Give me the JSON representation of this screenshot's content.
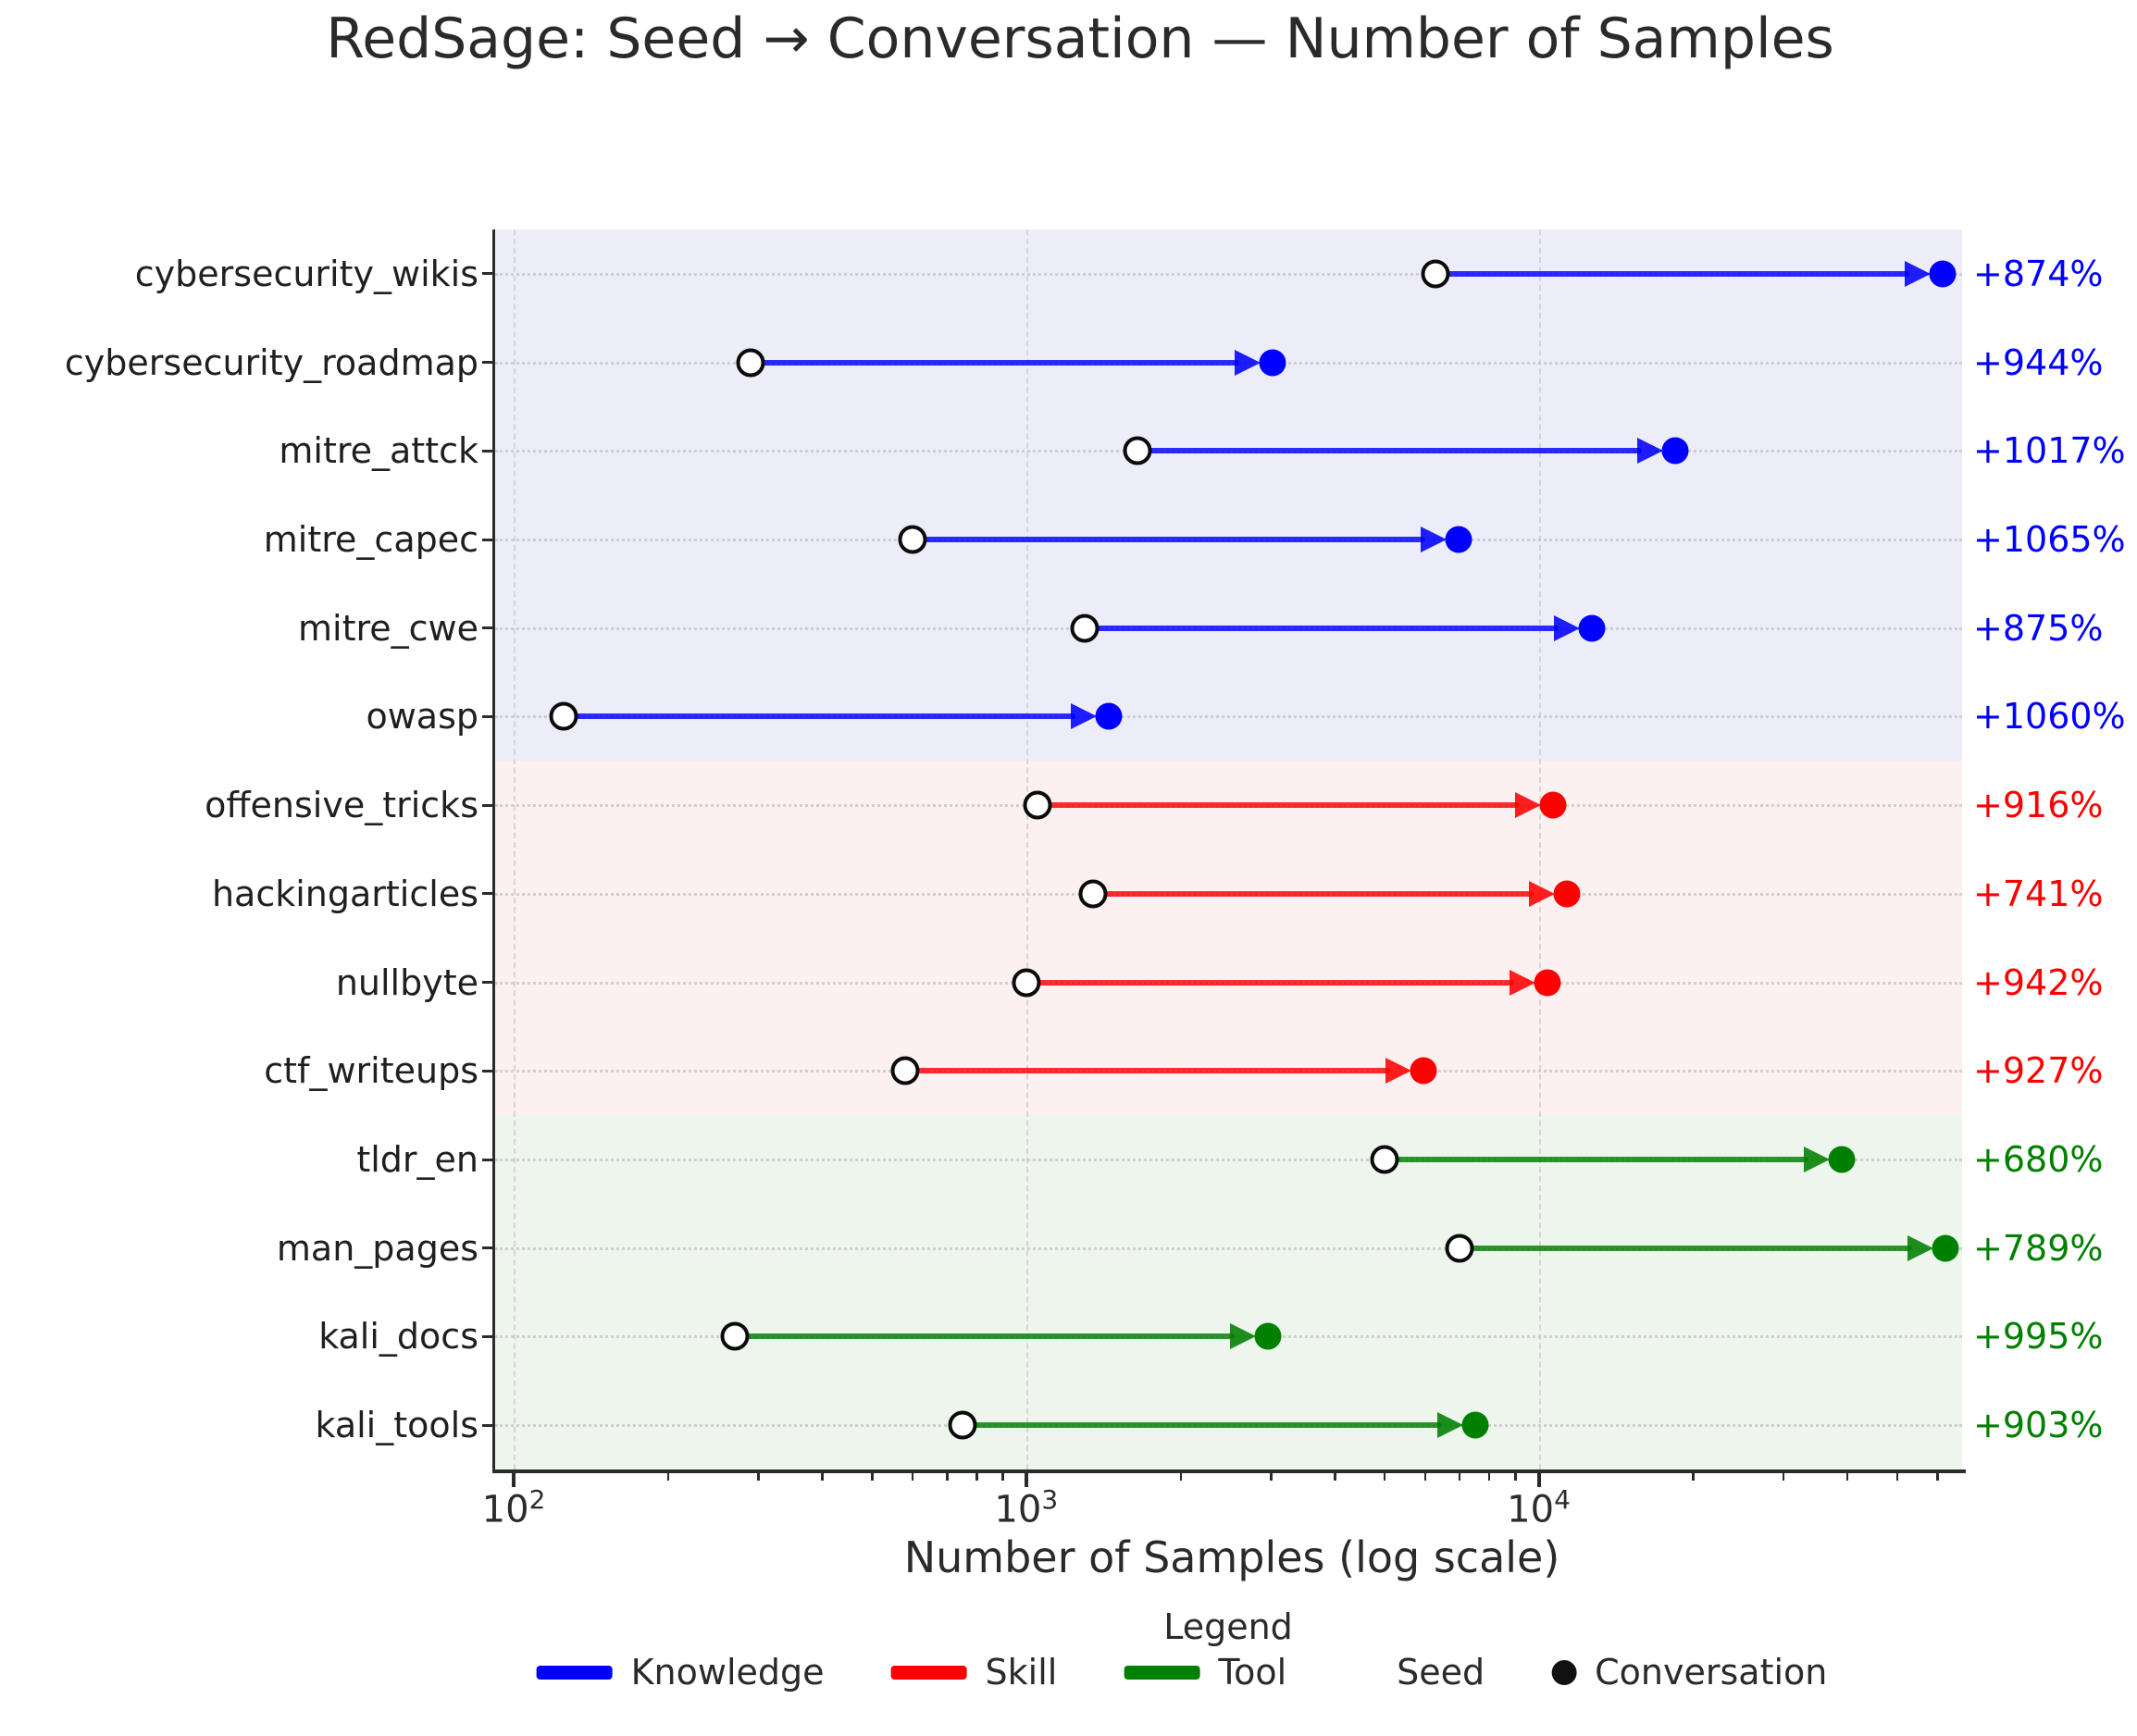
{
  "chart_data": {
    "type": "scatter",
    "variant": "dumbbell-arrow",
    "title": "RedSage: Seed → Conversation — Number of Samples",
    "xlabel": "Number of Samples (log scale)",
    "xscale": "log",
    "xlim": [
      92,
      67000
    ],
    "grid": {
      "vertical": "dashed at decades",
      "horizontal": "dotted per row"
    },
    "xticks": [
      {
        "value": 100,
        "base": "10",
        "exp": "2"
      },
      {
        "value": 1000,
        "base": "10",
        "exp": "3"
      },
      {
        "value": 10000,
        "base": "10",
        "exp": "4"
      }
    ],
    "categories": [
      "cybersecurity_wikis",
      "cybersecurity_roadmap",
      "mitre_attck",
      "mitre_capec",
      "mitre_cwe",
      "owasp",
      "offensive_tricks",
      "hackingarticles",
      "nullbyte",
      "ctf_writeups",
      "tldr_en",
      "man_pages",
      "kali_docs",
      "kali_tools"
    ],
    "groups": [
      "Knowledge",
      "Knowledge",
      "Knowledge",
      "Knowledge",
      "Knowledge",
      "Knowledge",
      "Skill",
      "Skill",
      "Skill",
      "Skill",
      "Tool",
      "Tool",
      "Tool",
      "Tool"
    ],
    "series": [
      {
        "name": "Seed",
        "values": [
          6300,
          290,
          1650,
          600,
          1300,
          125,
          1050,
          1350,
          1000,
          580,
          5000,
          7000,
          270,
          750
        ]
      },
      {
        "name": "Conversation",
        "values": [
          61400,
          3030,
          18430,
          6990,
          12680,
          1450,
          10670,
          11350,
          10420,
          5960,
          39000,
          62230,
          2960,
          7520
        ]
      }
    ],
    "pct_change_labels": [
      "+874%",
      "+944%",
      "+1017%",
      "+1065%",
      "+875%",
      "+1060%",
      "+916%",
      "+741%",
      "+942%",
      "+927%",
      "+680%",
      "+789%",
      "+995%",
      "+903%"
    ],
    "colors": {
      "Knowledge": "#0000ff",
      "Skill": "#ff0000",
      "Tool": "#008000"
    },
    "band_colors": {
      "Knowledge": "#ededf9",
      "Skill": "#fdf0f0",
      "Tool": "#edf5ed"
    },
    "seed_marker": {
      "fill": "#ffffff",
      "edge": "#0b0b0b"
    },
    "legend": {
      "title": "Legend",
      "items": [
        {
          "label": "Knowledge",
          "type": "line",
          "color": "#0000ff"
        },
        {
          "label": "Skill",
          "type": "line",
          "color": "#ff0000"
        },
        {
          "label": "Tool",
          "type": "line",
          "color": "#008000"
        },
        {
          "label": "Seed",
          "type": "marker-open",
          "color": "#ffffff"
        },
        {
          "label": "Conversation",
          "type": "marker-filled",
          "color": "#111111"
        }
      ]
    }
  }
}
